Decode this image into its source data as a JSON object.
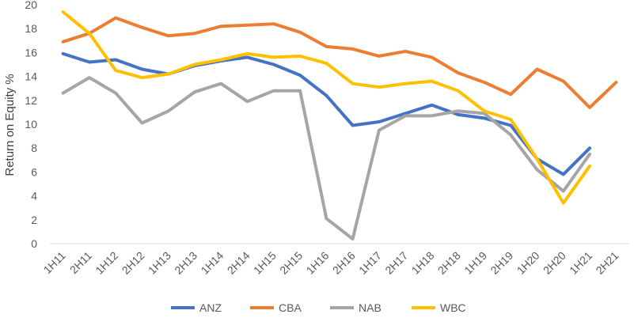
{
  "chart_data": {
    "type": "line",
    "title": "",
    "xlabel": "",
    "ylabel": "Return on Equity %",
    "ylim": [
      0,
      20
    ],
    "yticks": [
      "0",
      "2",
      "4",
      "6",
      "8",
      "10",
      "12",
      "14",
      "16",
      "18",
      "20"
    ],
    "grid": false,
    "legend_position": "bottom",
    "categories": [
      "1H11",
      "2H11",
      "1H12",
      "2H12",
      "1H13",
      "2H13",
      "1H14",
      "2H14",
      "1H15",
      "2H15",
      "1H16",
      "2H16",
      "1H17",
      "2H17",
      "1H18",
      "2H18",
      "1H19",
      "2H19",
      "1H20",
      "2H20",
      "1H21",
      "2H21"
    ],
    "series": [
      {
        "name": "ANZ",
        "color": "#4472C4",
        "values": [
          15.9,
          15.2,
          15.4,
          14.6,
          14.2,
          14.9,
          15.3,
          15.6,
          15.0,
          14.1,
          12.4,
          9.9,
          10.2,
          10.9,
          11.6,
          10.8,
          10.5,
          9.9,
          7.1,
          5.8,
          8.0,
          null
        ]
      },
      {
        "name": "CBA",
        "color": "#ED7D31",
        "values": [
          16.9,
          17.6,
          18.9,
          18.1,
          17.4,
          17.6,
          18.2,
          18.3,
          18.4,
          17.7,
          16.5,
          16.3,
          15.7,
          16.1,
          15.6,
          14.3,
          13.5,
          12.5,
          14.6,
          13.6,
          11.4,
          13.5
        ]
      },
      {
        "name": "NAB",
        "color": "#A5A5A5",
        "values": [
          12.6,
          13.9,
          12.6,
          10.1,
          11.1,
          12.7,
          13.4,
          11.9,
          12.8,
          12.8,
          2.1,
          0.4,
          9.5,
          10.7,
          10.7,
          11.1,
          10.9,
          9.1,
          6.2,
          4.4,
          7.5,
          null
        ]
      },
      {
        "name": "WBC",
        "color": "#FFC000",
        "values": [
          19.4,
          17.6,
          14.5,
          13.9,
          14.2,
          15.0,
          15.4,
          15.9,
          15.6,
          15.7,
          15.1,
          13.4,
          13.1,
          13.4,
          13.6,
          12.8,
          11.1,
          10.4,
          7.1,
          3.4,
          6.5,
          null
        ]
      }
    ]
  }
}
